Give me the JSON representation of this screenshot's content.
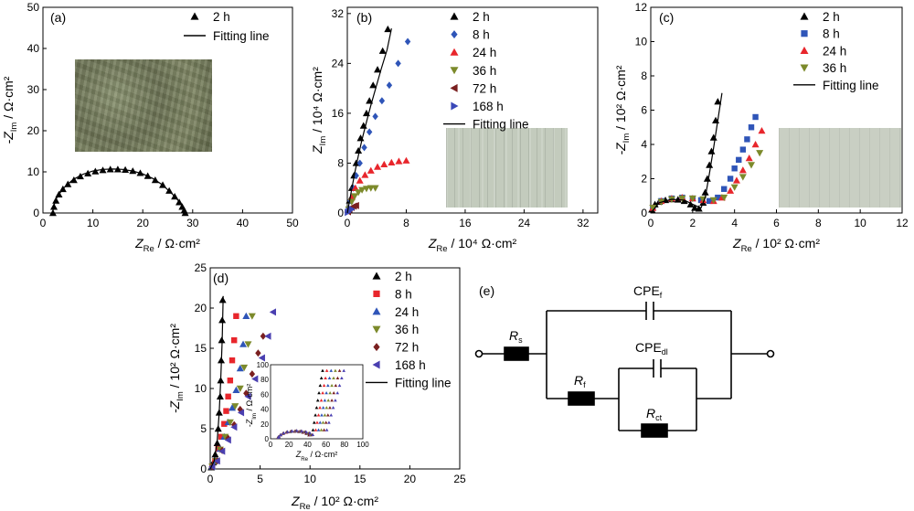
{
  "chart_data": [
    {
      "panel": "(a)",
      "type": "scatter",
      "xlabel": "Z_Re / Ω·cm²",
      "ylabel": "-Z_Im / Ω·cm²",
      "xlim": [
        0,
        50
      ],
      "ylim": [
        0,
        50
      ],
      "xticks": [
        0,
        10,
        20,
        30,
        40,
        50
      ],
      "yticks": [
        0,
        10,
        20,
        30,
        40,
        50
      ],
      "legend_position": "top-right",
      "series": [
        {
          "name": "2 h",
          "marker": "triangle",
          "color": "#000000",
          "x": [
            2.0,
            2.2,
            2.6,
            3.2,
            4.0,
            5.0,
            6.2,
            7.5,
            9.0,
            10.5,
            12.0,
            13.5,
            15.0,
            16.5,
            18.0,
            19.5,
            21.0,
            22.5,
            24.0,
            25.3,
            26.4,
            27.3,
            27.9,
            28.3,
            28.5
          ],
          "y": [
            0.0,
            1.5,
            3.0,
            4.5,
            5.8,
            7.0,
            8.0,
            8.9,
            9.6,
            10.1,
            10.4,
            10.6,
            10.6,
            10.5,
            10.2,
            9.7,
            9.0,
            8.0,
            6.8,
            5.4,
            4.0,
            2.6,
            1.5,
            0.6,
            0.0
          ]
        },
        {
          "name": "Fitting line",
          "line": true,
          "color": "#000000",
          "x": [
            1.9,
            2.5,
            4.0,
            6.0,
            8.0,
            10.0,
            12.0,
            14.0,
            16.0,
            18.0,
            20.0,
            22.0,
            24.0,
            26.0,
            27.5,
            28.4,
            28.7
          ],
          "y": [
            0.0,
            3.2,
            5.9,
            8.1,
            9.4,
            10.2,
            10.6,
            10.7,
            10.6,
            10.2,
            9.5,
            8.4,
            6.8,
            4.5,
            2.5,
            0.8,
            0.0
          ]
        }
      ]
    },
    {
      "panel": "(b)",
      "type": "scatter",
      "xlabel": "Z_Re / 10⁴ Ω·cm²",
      "ylabel": "Z_Im / 10⁴ Ω·cm²",
      "xlim": [
        0,
        34
      ],
      "ylim": [
        0,
        33
      ],
      "xticks": [
        0,
        8,
        16,
        24,
        32
      ],
      "yticks": [
        0,
        8,
        16,
        24,
        32
      ],
      "legend_position": "top-right",
      "series": [
        {
          "name": "2 h",
          "marker": "triangle",
          "color": "#000000",
          "x": [
            0.1,
            0.3,
            0.6,
            0.9,
            1.2,
            1.5,
            1.8,
            2.2,
            2.6,
            3.0,
            3.5,
            4.1,
            4.8,
            5.5
          ],
          "y": [
            0.5,
            2.0,
            4.0,
            6.0,
            8.0,
            10.0,
            12.0,
            14.0,
            16.0,
            18.0,
            20.5,
            23.0,
            26.0,
            29.5
          ]
        },
        {
          "name": "8 h",
          "marker": "diamond",
          "color": "#2f55b8",
          "x": [
            0.1,
            0.4,
            0.8,
            1.2,
            1.7,
            2.3,
            3.0,
            3.8,
            4.7,
            5.7,
            6.9,
            8.2
          ],
          "y": [
            0.4,
            2.0,
            4.0,
            6.0,
            8.0,
            10.5,
            13.0,
            15.5,
            18.0,
            20.5,
            24.0,
            27.5
          ]
        },
        {
          "name": "24 h",
          "marker": "triangle",
          "color": "#e8262c",
          "x": [
            0.2,
            0.6,
            1.1,
            1.7,
            2.4,
            3.2,
            4.1,
            5.0,
            6.0,
            7.0,
            8.0
          ],
          "y": [
            0.6,
            2.5,
            4.0,
            5.2,
            6.1,
            6.8,
            7.4,
            7.8,
            8.1,
            8.3,
            8.4
          ]
        },
        {
          "name": "36 h",
          "marker": "triangle-down",
          "color": "#7c8a2b",
          "x": [
            0.2,
            0.6,
            1.0,
            1.5,
            2.0,
            2.6,
            3.2,
            3.8
          ],
          "y": [
            0.6,
            1.8,
            2.7,
            3.3,
            3.7,
            3.9,
            4.0,
            4.0
          ]
        },
        {
          "name": "72 h",
          "marker": "triangle-left",
          "color": "#7a2020",
          "x": [
            0.1,
            0.3,
            0.6,
            0.9,
            1.2
          ],
          "y": [
            0.2,
            0.6,
            0.9,
            1.1,
            1.2
          ]
        },
        {
          "name": "168 h",
          "marker": "triangle-right",
          "color": "#3a48b8",
          "x": [
            0.05,
            0.2,
            0.4,
            0.6
          ],
          "y": [
            0.1,
            0.3,
            0.5,
            0.6
          ]
        },
        {
          "name": "Fitting line",
          "line": true,
          "color": "#000000",
          "x": [
            0.0,
            0.5,
            1.0,
            1.5,
            2.0,
            2.6,
            3.2,
            3.9,
            4.6,
            5.4,
            6.0
          ],
          "y": [
            0.0,
            3.2,
            6.4,
            9.2,
            11.8,
            14.6,
            17.3,
            20.2,
            23.1,
            26.2,
            29.6
          ]
        }
      ]
    },
    {
      "panel": "(c)",
      "type": "scatter",
      "xlabel": "Z_Re / 10² Ω·cm²",
      "ylabel": "-Z_Im / 10² Ω·cm²",
      "xlim": [
        0,
        12
      ],
      "ylim": [
        0,
        12
      ],
      "xticks": [
        0,
        2,
        4,
        6,
        8,
        10,
        12
      ],
      "yticks": [
        0,
        2,
        4,
        6,
        8,
        10,
        12
      ],
      "legend_position": "top-right",
      "series": [
        {
          "name": "2 h",
          "marker": "triangle",
          "color": "#000000",
          "x": [
            0.05,
            0.2,
            0.4,
            0.7,
            1.0,
            1.3,
            1.6,
            1.9,
            2.1,
            2.3,
            2.5,
            2.6,
            2.7,
            2.8,
            2.9,
            3.0,
            3.1,
            3.2
          ],
          "y": [
            0.2,
            0.5,
            0.65,
            0.75,
            0.8,
            0.78,
            0.7,
            0.5,
            0.3,
            0.25,
            0.6,
            1.2,
            2.0,
            2.8,
            3.6,
            4.4,
            5.4,
            6.5
          ]
        },
        {
          "name": "8 h",
          "marker": "square",
          "color": "#2f55b8",
          "x": [
            0.1,
            0.5,
            1.0,
            1.5,
            2.0,
            2.4,
            2.8,
            3.2,
            3.5,
            3.8,
            4.0,
            4.2,
            4.4,
            4.6,
            4.8,
            5.0
          ],
          "y": [
            0.3,
            0.7,
            0.85,
            0.9,
            0.85,
            0.75,
            0.7,
            0.9,
            1.4,
            2.0,
            2.6,
            3.1,
            3.7,
            4.3,
            5.0,
            5.6
          ]
        },
        {
          "name": "24 h",
          "marker": "triangle",
          "color": "#e8262c",
          "x": [
            0.1,
            0.5,
            1.0,
            1.5,
            2.0,
            2.5,
            3.0,
            3.4,
            3.8,
            4.1,
            4.4,
            4.7,
            5.0,
            5.3
          ],
          "y": [
            0.3,
            0.7,
            0.85,
            0.9,
            0.85,
            0.75,
            0.7,
            0.9,
            1.3,
            1.9,
            2.5,
            3.2,
            4.0,
            4.8
          ]
        },
        {
          "name": "36 h",
          "marker": "triangle-down",
          "color": "#7c8a2b",
          "x": [
            0.1,
            0.5,
            1.0,
            1.5,
            2.0,
            2.5,
            3.0,
            3.5,
            4.0,
            4.4,
            4.8,
            5.2
          ],
          "y": [
            0.3,
            0.65,
            0.8,
            0.85,
            0.85,
            0.8,
            0.75,
            0.9,
            1.5,
            2.1,
            2.8,
            3.5
          ]
        },
        {
          "name": "Fitting line",
          "line": true,
          "color": "#000000",
          "x": [
            0.0,
            0.4,
            1.0,
            1.6,
            2.1,
            2.4,
            2.6,
            2.8,
            3.0,
            3.2,
            3.4
          ],
          "y": [
            0.0,
            0.6,
            0.8,
            0.75,
            0.45,
            0.3,
            0.9,
            2.3,
            3.8,
            5.4,
            7.0
          ]
        }
      ]
    },
    {
      "panel": "(d)",
      "type": "scatter",
      "xlabel": "Z_Re / 10² Ω·cm²",
      "ylabel": "-Z_Im / 10² Ω·cm²",
      "xlim": [
        0,
        25
      ],
      "ylim": [
        0,
        25
      ],
      "xticks": [
        0,
        5,
        10,
        15,
        20,
        25
      ],
      "yticks": [
        0,
        5,
        10,
        15,
        20,
        25
      ],
      "legend_position": "top-right",
      "inset": {
        "xlabel": "Z_Re / Ω·cm²",
        "ylabel": "-Z_Im / Ω·cm²",
        "xlim": [
          0,
          100
        ],
        "ylim": [
          0,
          100
        ],
        "xticks": [
          0,
          20,
          40,
          60,
          80,
          100
        ],
        "yticks": [
          0,
          20,
          40,
          60,
          80,
          100
        ]
      },
      "series": [
        {
          "name": "2 h",
          "marker": "triangle",
          "color": "#000000",
          "x": [
            0.1,
            0.3,
            0.5,
            0.7,
            0.8,
            0.9,
            1.0,
            1.05,
            1.1,
            1.15,
            1.2,
            1.25
          ],
          "y": [
            0.2,
            0.8,
            1.8,
            3.2,
            5.0,
            7.0,
            9.0,
            11.0,
            13.5,
            16.0,
            18.5,
            21.0
          ]
        },
        {
          "name": "8 h",
          "marker": "square",
          "color": "#e8262c",
          "x": [
            0.2,
            0.5,
            0.8,
            1.1,
            1.4,
            1.6,
            1.8,
            2.0,
            2.2,
            2.4,
            2.6
          ],
          "y": [
            0.3,
            1.0,
            2.5,
            4.0,
            5.6,
            7.2,
            9.0,
            11.0,
            13.5,
            16.0,
            19.0
          ]
        },
        {
          "name": "24 h",
          "marker": "triangle",
          "color": "#2f55b8",
          "x": [
            0.2,
            0.6,
            1.0,
            1.4,
            1.8,
            2.2,
            2.6,
            3.0,
            3.3,
            3.6
          ],
          "y": [
            0.3,
            1.0,
            2.5,
            4.0,
            5.8,
            7.6,
            9.8,
            12.5,
            15.5,
            19.0
          ]
        },
        {
          "name": "36 h",
          "marker": "triangle-down",
          "color": "#7c8a2b",
          "x": [
            0.2,
            0.6,
            1.0,
            1.5,
            2.0,
            2.5,
            3.0,
            3.4,
            3.8,
            4.2
          ],
          "y": [
            0.3,
            1.0,
            2.4,
            4.0,
            5.8,
            7.8,
            10.0,
            12.6,
            15.5,
            19.0
          ]
        },
        {
          "name": "72 h",
          "marker": "diamond",
          "color": "#7a2020",
          "x": [
            0.2,
            0.7,
            1.2,
            1.8,
            2.4,
            3.0,
            3.6,
            4.2,
            4.8,
            5.3
          ],
          "y": [
            0.3,
            1.0,
            2.3,
            3.8,
            5.5,
            7.4,
            9.4,
            11.8,
            14.4,
            16.5
          ]
        },
        {
          "name": "168 h",
          "marker": "triangle-left",
          "color": "#4a3fb0",
          "x": [
            0.2,
            0.7,
            1.2,
            1.8,
            2.4,
            3.1,
            3.8,
            4.5,
            5.2,
            5.8,
            6.3
          ],
          "y": [
            0.3,
            1.0,
            2.2,
            3.6,
            5.2,
            7.0,
            9.0,
            11.2,
            13.8,
            16.5,
            19.5
          ]
        },
        {
          "name": "Fitting line",
          "line": true,
          "color": "#000000",
          "x": [
            0.0,
            0.4,
            0.7,
            0.9,
            1.05,
            1.2,
            1.3
          ],
          "y": [
            0.0,
            1.0,
            3.5,
            7.0,
            11.0,
            16.0,
            21.5
          ]
        }
      ]
    }
  ],
  "diagram": {
    "label": "(e)",
    "components": {
      "rs": {
        "main": "R",
        "sub": "s"
      },
      "rf": {
        "main": "R",
        "sub": "f"
      },
      "rct": {
        "main": "R",
        "sub": "ct"
      },
      "cpef": {
        "main": "CPE",
        "sub": "f"
      },
      "cpedl": {
        "main": "CPE",
        "sub": "dl"
      }
    }
  }
}
